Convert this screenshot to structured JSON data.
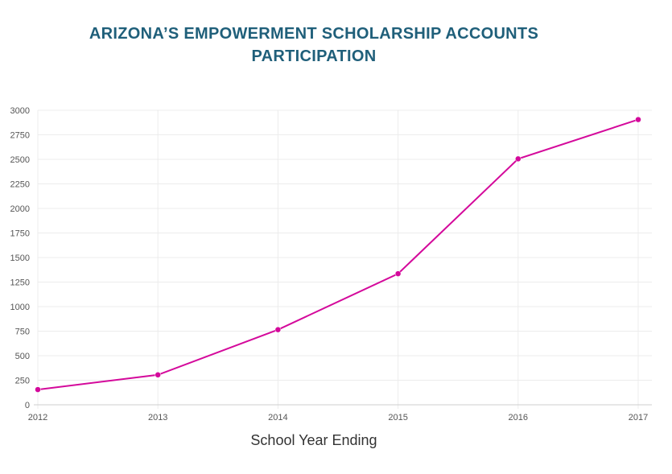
{
  "chart_data": {
    "type": "line",
    "title_lines": [
      "ARIZONA’S EMPOWERMENT SCHOLARSHIP ACCOUNTS",
      "PARTICIPATION"
    ],
    "xlabel": "School Year Ending",
    "ylabel": "",
    "categories": [
      "2012",
      "2013",
      "2014",
      "2015",
      "2016",
      "2017"
    ],
    "series": [
      {
        "values": [
          155,
          305,
          765,
          1335,
          2505,
          2905
        ]
      }
    ],
    "ylim": [
      0,
      3000
    ],
    "yticks": [
      "0",
      "250",
      "500",
      "750",
      "1000",
      "1250",
      "1500",
      "1750",
      "2000",
      "2250",
      "2500",
      "2750",
      "3000"
    ],
    "grid": true,
    "line_color": "#d4099b"
  }
}
